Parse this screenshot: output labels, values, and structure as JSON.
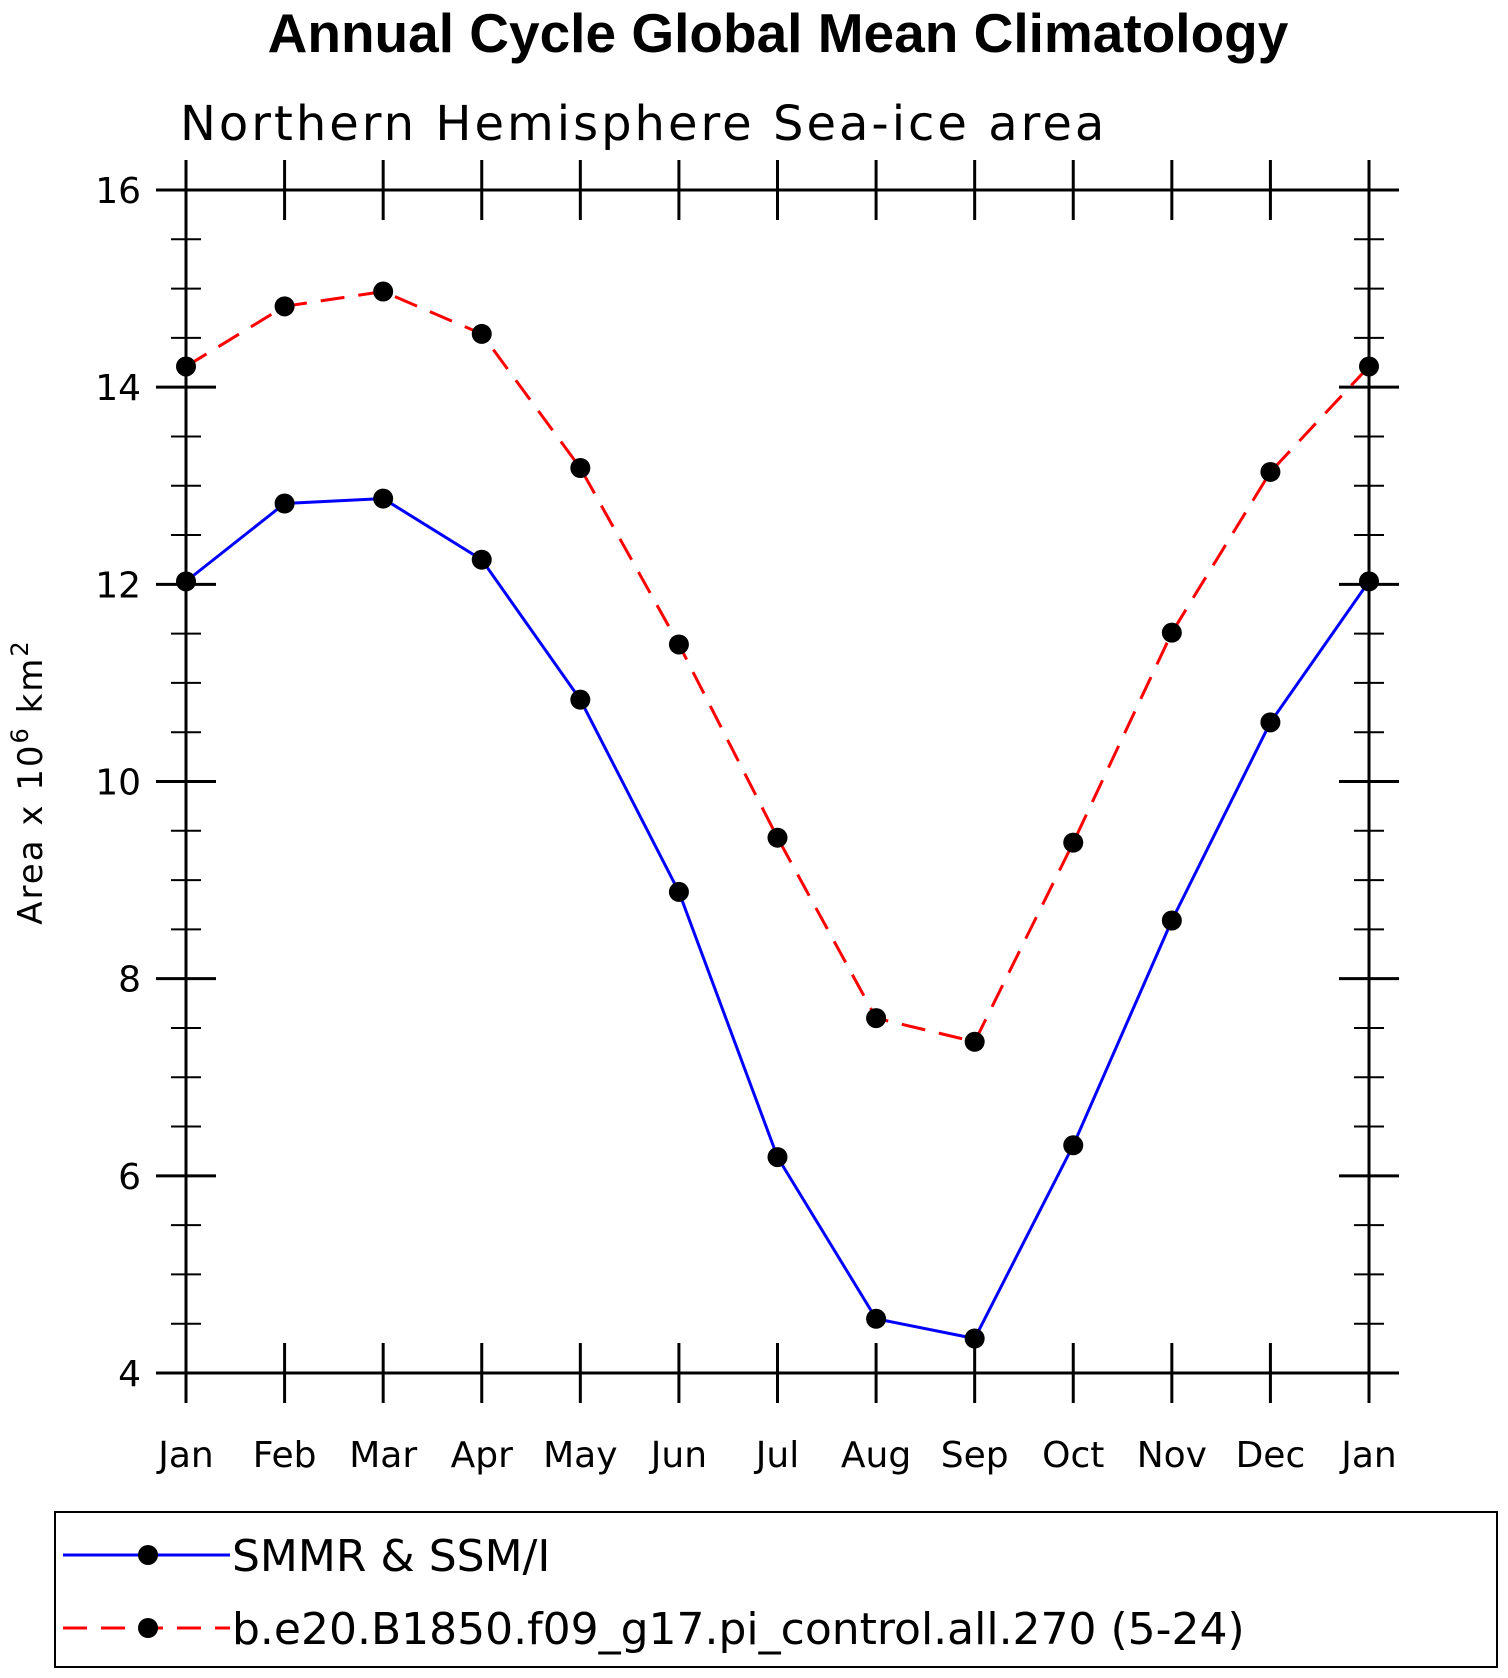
{
  "chart_data": {
    "type": "line",
    "title": "Annual Cycle Global Mean Climatology",
    "subtitle": "Northern Hemisphere Sea-ice area",
    "ylabel": {
      "prefix": "Area x 10",
      "exponent": "6",
      "unit": " km",
      "unit_exponent": "2"
    },
    "xlabel": "",
    "categories": [
      "Jan",
      "Feb",
      "Mar",
      "Apr",
      "May",
      "Jun",
      "Jul",
      "Aug",
      "Sep",
      "Oct",
      "Nov",
      "Dec",
      "Jan"
    ],
    "ylim": [
      4,
      16
    ],
    "yticks": [
      4,
      6,
      8,
      10,
      12,
      14,
      16
    ],
    "legend_position": "bottom",
    "series": [
      {
        "name": "SMMR & SSM/I",
        "color": "#0000ff",
        "dash": "solid",
        "marker": "circle",
        "values": [
          12.03,
          12.82,
          12.87,
          12.25,
          10.83,
          8.88,
          6.19,
          4.55,
          4.35,
          6.31,
          8.59,
          10.6,
          12.03
        ]
      },
      {
        "name": "b.e20.B1850.f09_g17.pi_control.all.270 (5-24)",
        "color": "#ff0000",
        "dash": "dashed",
        "marker": "circle",
        "values": [
          14.21,
          14.82,
          14.97,
          14.54,
          13.18,
          11.39,
          9.43,
          7.6,
          7.36,
          9.38,
          11.51,
          13.14,
          14.21
        ]
      }
    ]
  }
}
